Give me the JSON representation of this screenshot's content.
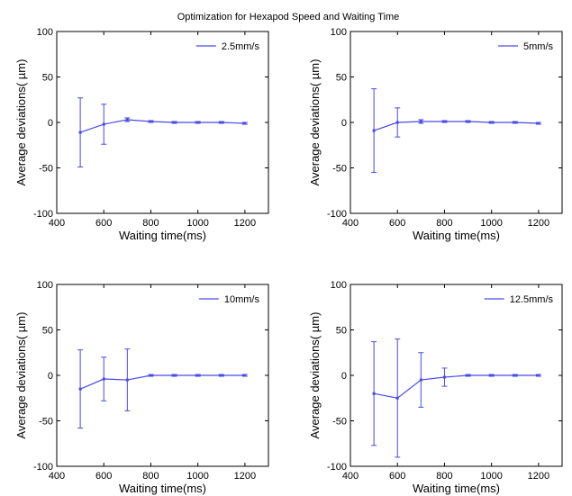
{
  "figure": {
    "title": "Optimization for Hexapod Speed and Waiting Time",
    "colors": {
      "series": "#4a4ae6",
      "axes": "#000000",
      "background": "#ffffff"
    }
  },
  "chart_data": [
    {
      "type": "line",
      "legend": "2.5mm/s",
      "legend_position": "top-right",
      "xlabel": "Waiting time(ms)",
      "ylabel": "Average deviations( µm)",
      "xlim": [
        400,
        1300
      ],
      "ylim": [
        -100,
        100
      ],
      "x_ticks": [
        400,
        600,
        800,
        1000,
        1200
      ],
      "y_ticks": [
        -100,
        -50,
        0,
        50,
        100
      ],
      "grid": false,
      "series": [
        {
          "name": "2.5mm/s",
          "x": [
            500,
            600,
            700,
            800,
            900,
            1000,
            1100,
            1200
          ],
          "y": [
            -11,
            -2,
            3,
            1,
            0,
            0,
            0,
            -1
          ],
          "error": [
            38,
            22,
            2,
            1,
            1,
            1,
            1,
            1
          ]
        }
      ]
    },
    {
      "type": "line",
      "legend": "5mm/s",
      "legend_position": "top-right",
      "xlabel": "Waiting time(ms)",
      "ylabel": "Average deviations( µm)",
      "xlim": [
        400,
        1300
      ],
      "ylim": [
        -100,
        100
      ],
      "x_ticks": [
        400,
        600,
        800,
        1000,
        1200
      ],
      "y_ticks": [
        -100,
        -50,
        0,
        50,
        100
      ],
      "grid": false,
      "series": [
        {
          "name": "5mm/s",
          "x": [
            500,
            600,
            700,
            800,
            900,
            1000,
            1100,
            1200
          ],
          "y": [
            -9,
            0,
            1,
            1,
            1,
            0,
            0,
            -1
          ],
          "error": [
            46,
            16,
            2,
            1,
            1,
            1,
            1,
            1
          ]
        }
      ]
    },
    {
      "type": "line",
      "legend": "10mm/s",
      "legend_position": "top-right",
      "xlabel": "Waiting time(ms)",
      "ylabel": "Average deviations( µm)",
      "xlim": [
        400,
        1300
      ],
      "ylim": [
        -100,
        100
      ],
      "x_ticks": [
        400,
        600,
        800,
        1000,
        1200
      ],
      "y_ticks": [
        -100,
        -50,
        0,
        50,
        100
      ],
      "grid": false,
      "series": [
        {
          "name": "10mm/s",
          "x": [
            500,
            600,
            700,
            800,
            900,
            1000,
            1100,
            1200
          ],
          "y": [
            -15,
            -4,
            -5,
            0,
            0,
            0,
            0,
            0
          ],
          "error": [
            43,
            24,
            34,
            1,
            1,
            1,
            1,
            1
          ]
        }
      ]
    },
    {
      "type": "line",
      "legend": "12.5mm/s",
      "legend_position": "top-right",
      "xlabel": "Waiting time(ms)",
      "ylabel": "Average deviations( µm)",
      "xlim": [
        400,
        1300
      ],
      "ylim": [
        -100,
        100
      ],
      "x_ticks": [
        400,
        600,
        800,
        1000,
        1200
      ],
      "y_ticks": [
        -100,
        -50,
        0,
        50,
        100
      ],
      "grid": false,
      "series": [
        {
          "name": "12.5mm/s",
          "x": [
            500,
            600,
            700,
            800,
            900,
            1000,
            1100,
            1200
          ],
          "y": [
            -20,
            -25,
            -5,
            -2,
            0,
            0,
            0,
            0
          ],
          "error": [
            57,
            65,
            30,
            10,
            1,
            1,
            1,
            1
          ]
        }
      ]
    }
  ]
}
